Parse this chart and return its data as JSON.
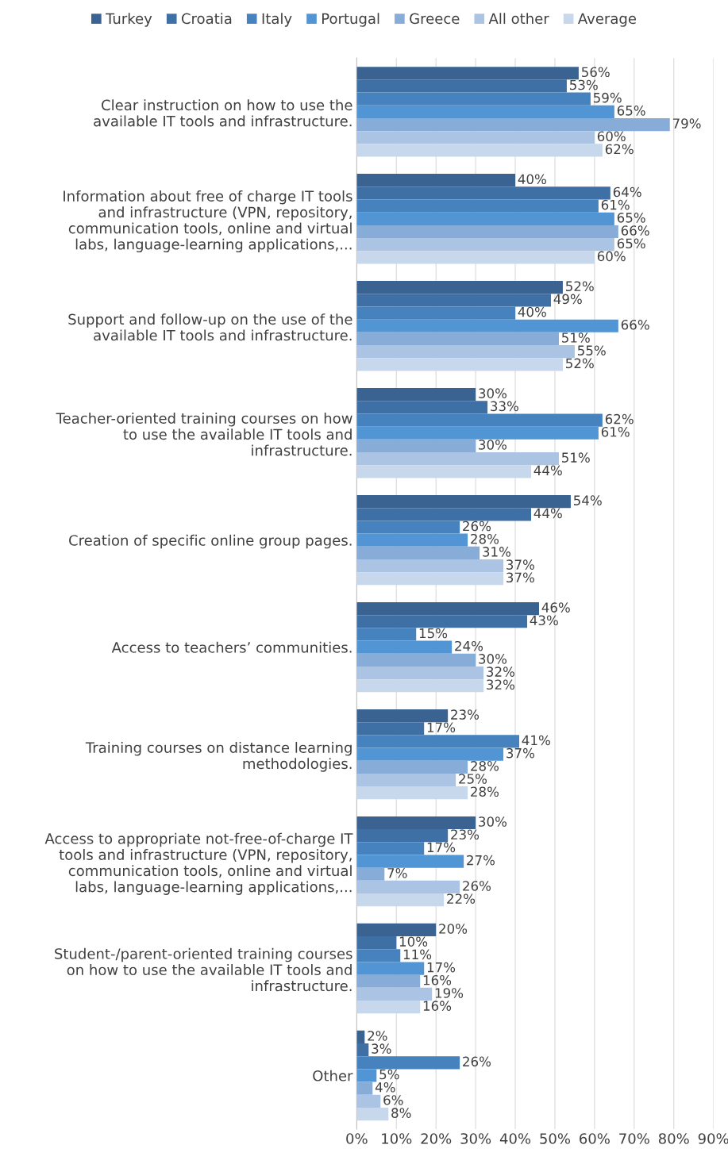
{
  "chart_data": {
    "type": "bar",
    "orientation": "horizontal",
    "categories": [
      "Clear instruction on how to use the\navailable IT tools and infrastructure.",
      "Information about free of charge IT tools\nand infrastructure (VPN, repository,\ncommunication tools, online and virtual\nlabs, language-learning applications,...",
      "Support and follow-up on the use of the\navailable IT tools and infrastructure.",
      "Teacher-oriented training courses on how\nto use the available IT tools and\ninfrastructure.",
      "Creation of specific online group pages.",
      "Access to teachers’ communities.",
      "Training courses on distance learning\nmethodologies.",
      "Access to appropriate not-free-of-charge IT\ntools and infrastructure (VPN, repository,\ncommunication tools, online and virtual\nlabs, language-learning applications,...",
      "Student-/parent-oriented training courses\non how to use the available IT tools and\ninfrastructure.",
      "Other"
    ],
    "series": [
      {
        "name": "Turkey",
        "color": "#3b6391",
        "values": [
          56,
          40,
          52,
          30,
          54,
          46,
          23,
          30,
          20,
          2
        ],
        "value_labels": [
          "56%",
          "40%",
          "52%",
          "30%",
          "54%",
          "46%",
          "23%",
          "30%",
          "20%",
          "2%"
        ]
      },
      {
        "name": "Croatia",
        "color": "#3e70a6",
        "values": [
          53,
          64,
          49,
          33,
          44,
          43,
          17,
          23,
          10,
          3
        ],
        "value_labels": [
          "53%",
          "64%",
          "49%",
          "33%",
          "44%",
          "43%",
          "17%",
          "23%",
          "10%",
          "3%"
        ]
      },
      {
        "name": "Italy",
        "color": "#4683be",
        "values": [
          59,
          61,
          40,
          62,
          26,
          15,
          41,
          17,
          11,
          26
        ],
        "value_labels": [
          "59%",
          "61%",
          "40%",
          "62%",
          "26%",
          "15%",
          "41%",
          "17%",
          "11%",
          "26%"
        ]
      },
      {
        "name": "Portugal",
        "color": "#5195d5",
        "values": [
          65,
          65,
          66,
          61,
          28,
          24,
          37,
          27,
          17,
          5
        ],
        "value_labels": [
          "65%",
          "65%",
          "66%",
          "61%",
          "28%",
          "24%",
          "37%",
          "27%",
          "17%",
          "5%"
        ]
      },
      {
        "name": "Greece",
        "color": "#87acd8",
        "values": [
          79,
          66,
          51,
          30,
          31,
          30,
          28,
          7,
          16,
          4
        ],
        "value_labels": [
          "79%",
          "66%",
          "51%",
          "30%",
          "31%",
          "30%",
          "28%",
          "7%",
          "16%",
          "4%"
        ]
      },
      {
        "name": "All other",
        "color": "#abc4e3",
        "values": [
          60,
          65,
          55,
          51,
          37,
          32,
          25,
          26,
          19,
          6
        ],
        "value_labels": [
          "60%",
          "65%",
          "55%",
          "51%",
          "37%",
          "32%",
          "25%",
          "26%",
          "19%",
          "6%"
        ]
      },
      {
        "name": "Average",
        "color": "#c7d7ec",
        "values": [
          62,
          60,
          52,
          44,
          37,
          32,
          28,
          22,
          16,
          8
        ],
        "value_labels": [
          "62%",
          "60%",
          "52%",
          "44%",
          "37%",
          "32%",
          "28%",
          "22%",
          "16%",
          "8%"
        ]
      }
    ],
    "xlim": [
      0,
      90
    ],
    "xticks": [
      {
        "value": 0,
        "label": "0%"
      },
      {
        "value": 10,
        "label": "10%"
      },
      {
        "value": 20,
        "label": "20%"
      },
      {
        "value": 30,
        "label": "30%"
      },
      {
        "value": 40,
        "label": "40%"
      },
      {
        "value": 50,
        "label": "50%"
      },
      {
        "value": 60,
        "label": "60%"
      },
      {
        "value": 70,
        "label": "70%"
      },
      {
        "value": 80,
        "label": "80%"
      },
      {
        "value": 90,
        "label": "90%"
      }
    ],
    "grid": "x",
    "legend": "top"
  }
}
